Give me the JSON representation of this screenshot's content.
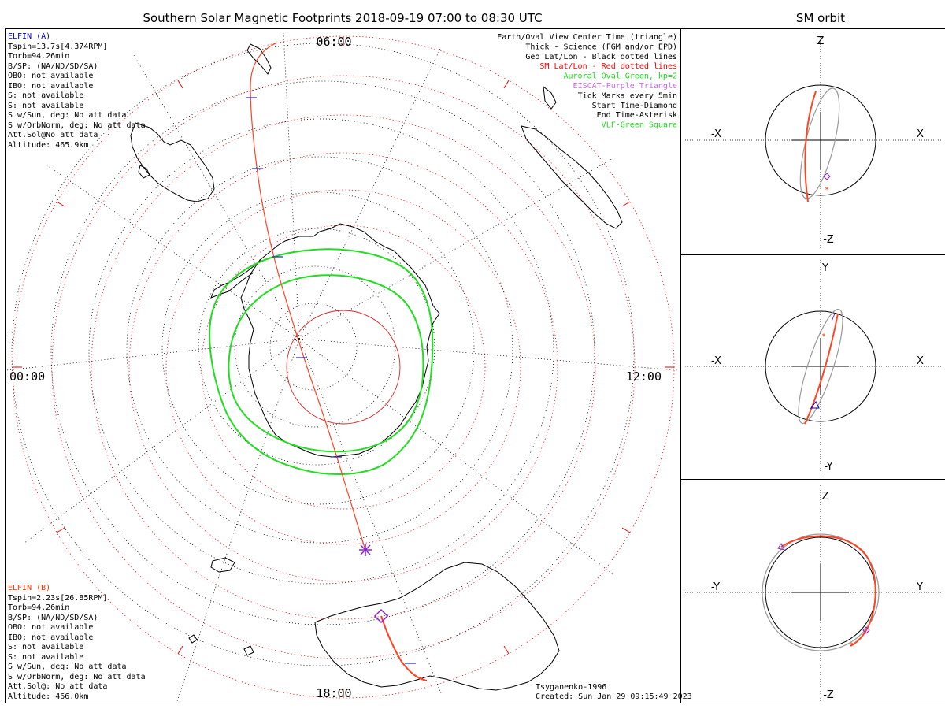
{
  "title": "Southern Solar Magnetic Footprints 2018-09-19 07:00 to 08:30 UTC",
  "orbit_title": "SM orbit",
  "hours": {
    "top": "06:00",
    "left": "00:00",
    "right": "12:00",
    "bottom": "18:00"
  },
  "elfin_a": {
    "name": "ELFIN (A)",
    "lines": [
      "Tspin=13.7s[4.374RPM]",
      "Torb=94.26min",
      "B/SP: (NA/ND/SD/SA)",
      "OBO: not available",
      "IBO: not available",
      "S: not available",
      "S: not available",
      "S w/Sun, deg: No att data",
      "S w/OrbNorm, deg: No att data",
      "Att.Sol@No att data",
      "Altitude: 465.9km"
    ]
  },
  "elfin_b": {
    "name": "ELFIN (B)",
    "lines": [
      "Tspin=2.23s[26.85RPM]",
      "Torb=94.26min",
      "B/SP: (NA/ND/SD/SA)",
      "OBO: not available",
      "IBO: not available",
      "S: not available",
      "S: not available",
      "S w/Sun, deg: No att data",
      "S w/OrbNorm, deg: No att data",
      "Att.Sol@: No att data",
      "Altitude: 466.0km"
    ]
  },
  "legend": [
    {
      "text": "Earth/Oval View Center Time (triangle)",
      "color": "#000000"
    },
    {
      "text": "Thick - Science (FGM and/or EPD)",
      "color": "#000000"
    },
    {
      "text": "Geo Lat/Lon - Black dotted lines",
      "color": "#000000"
    },
    {
      "text": "SM Lat/Lon - Red dotted lines",
      "color": "#ff0000"
    },
    {
      "text": "Auroral Oval-Green, kp=2",
      "color": "#22dd22"
    },
    {
      "text": "EISCAT-Purple Triangle",
      "color": "#cc66ff"
    },
    {
      "text": "Tick Marks every 5min",
      "color": "#000000"
    },
    {
      "text": "Start Time-Diamond",
      "color": "#000000"
    },
    {
      "text": "End Time-Asterisk",
      "color": "#000000"
    },
    {
      "text": "VLF-Green Square",
      "color": "#22dd22"
    }
  ],
  "footer": {
    "model": "Tsyganenko-1996",
    "created": "Created: Sun Jan 29 09:15:49 2023"
  },
  "panels": [
    {
      "top": "Z",
      "bottom": "-Z",
      "left": "-X",
      "right": "X"
    },
    {
      "top": "Y",
      "bottom": "-Y",
      "left": "-X",
      "right": "X"
    },
    {
      "top": "Z",
      "bottom": "-Z",
      "left": "-Y",
      "right": "Y"
    }
  ],
  "colors": {
    "elfin_a": "#0000cc",
    "elfin_b": "#ff3300",
    "oval": "#22dd22",
    "sm_grid": "#ff0000",
    "track": "#ff4422"
  }
}
